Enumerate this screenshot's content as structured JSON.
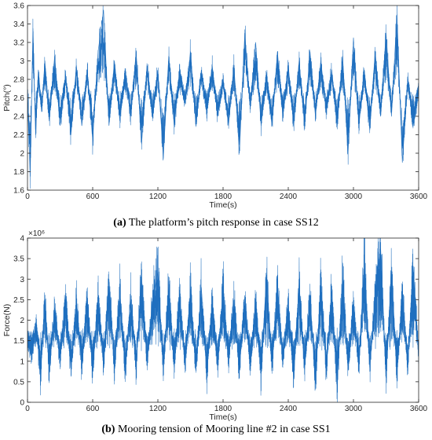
{
  "chart_data": [
    {
      "type": "line",
      "caption_tag": "(a)",
      "caption_text": " The platform’s pitch response in case SS12",
      "xlabel": "Time(s)",
      "ylabel": "Pitch(°)",
      "xlim": [
        0,
        3600
      ],
      "ylim": [
        1.6,
        3.6
      ],
      "xticks": [
        "0",
        "600",
        "1200",
        "1800",
        "2400",
        "3000",
        "3600"
      ],
      "yticks": [
        "1.6",
        "1.8",
        "2",
        "2.2",
        "2.4",
        "2.6",
        "2.8",
        "3",
        "3.2",
        "3.4",
        "3.6"
      ],
      "grid": false,
      "series_color": "#1f6fbf",
      "series": [
        {
          "x": [
            0,
            25,
            50,
            75,
            100,
            130,
            160,
            200,
            250,
            300,
            350,
            400,
            450,
            500,
            550,
            600,
            650,
            700,
            750,
            800,
            850,
            900,
            950,
            1000,
            1050,
            1100,
            1150,
            1200,
            1250,
            1300,
            1350,
            1400,
            1450,
            1500,
            1550,
            1600,
            1650,
            1700,
            1750,
            1800,
            1850,
            1900,
            1950,
            2000,
            2050,
            2100,
            2150,
            2200,
            2250,
            2300,
            2350,
            2400,
            2450,
            2500,
            2550,
            2600,
            2650,
            2700,
            2750,
            2800,
            2850,
            2900,
            2950,
            3000,
            3050,
            3100,
            3150,
            3200,
            3250,
            3300,
            3350,
            3400,
            3450,
            3500,
            3550,
            3600
          ],
          "y": [
            2.6,
            1.75,
            3.35,
            2.2,
            2.9,
            2.45,
            3.0,
            2.35,
            3.05,
            2.3,
            2.85,
            2.2,
            2.95,
            2.3,
            2.9,
            2.15,
            3.1,
            3.55,
            2.3,
            3.0,
            2.35,
            2.9,
            2.4,
            3.1,
            2.1,
            2.95,
            2.4,
            2.9,
            1.95,
            3.05,
            2.3,
            2.9,
            2.55,
            3.1,
            2.3,
            2.9,
            2.45,
            2.95,
            2.4,
            2.8,
            2.3,
            2.95,
            2.0,
            3.3,
            2.5,
            3.2,
            2.3,
            2.85,
            2.3,
            3.1,
            2.4,
            2.95,
            2.3,
            3.0,
            2.3,
            3.1,
            2.4,
            3.0,
            2.45,
            2.9,
            2.3,
            3.05,
            2.0,
            3.25,
            2.3,
            2.9,
            2.25,
            3.1,
            2.4,
            3.3,
            2.4,
            3.5,
            1.9,
            2.8,
            2.3,
            2.7
          ]
        }
      ]
    },
    {
      "type": "line",
      "caption_tag": "(b)",
      "caption_text": " Mooring tension of Mooring line #2 in case SS1",
      "xlabel": "Time(s)",
      "ylabel": "Force(N)",
      "scale_label": "×10⁶",
      "xlim": [
        0,
        3600
      ],
      "ylim": [
        0,
        4
      ],
      "xticks": [
        "0",
        "600",
        "1200",
        "1800",
        "2400",
        "3000",
        "3600"
      ],
      "yticks": [
        "0",
        "0.5",
        "1",
        "1.5",
        "2",
        "2.5",
        "3",
        "3.5",
        "4"
      ],
      "grid": false,
      "series_color": "#1f6fbf",
      "series": [
        {
          "x": [
            0,
            40,
            80,
            120,
            160,
            200,
            250,
            300,
            350,
            400,
            450,
            500,
            550,
            600,
            650,
            700,
            750,
            800,
            850,
            900,
            950,
            1000,
            1050,
            1100,
            1150,
            1200,
            1250,
            1300,
            1350,
            1400,
            1450,
            1500,
            1550,
            1600,
            1650,
            1700,
            1750,
            1800,
            1850,
            1900,
            1950,
            2000,
            2050,
            2100,
            2150,
            2200,
            2250,
            2300,
            2350,
            2400,
            2450,
            2500,
            2550,
            2600,
            2650,
            2700,
            2750,
            2800,
            2850,
            2900,
            2950,
            3000,
            3050,
            3100,
            3150,
            3200,
            3250,
            3300,
            3350,
            3400,
            3450,
            3500,
            3550,
            3600
          ],
          "y": [
            1.5,
            1.2,
            1.9,
            0.65,
            2.5,
            0.8,
            2.3,
            1.0,
            2.6,
            0.8,
            2.4,
            0.9,
            2.5,
            0.75,
            2.6,
            0.9,
            3.0,
            0.85,
            2.7,
            0.8,
            2.5,
            0.9,
            3.05,
            1.0,
            2.4,
            3.2,
            0.8,
            2.8,
            0.85,
            2.6,
            0.9,
            2.7,
            0.8,
            2.8,
            0.7,
            2.4,
            0.9,
            2.75,
            1.0,
            2.5,
            0.8,
            2.6,
            0.9,
            2.4,
            0.7,
            3.1,
            0.85,
            2.8,
            1.0,
            2.4,
            0.6,
            2.9,
            0.8,
            2.6,
            0.5,
            2.9,
            0.8,
            2.7,
            0.4,
            3.05,
            0.8,
            2.4,
            0.9,
            3.4,
            0.85,
            2.6,
            3.75,
            0.6,
            3.2,
            0.7,
            2.6,
            0.9,
            3.3,
            1.1
          ]
        }
      ]
    }
  ]
}
